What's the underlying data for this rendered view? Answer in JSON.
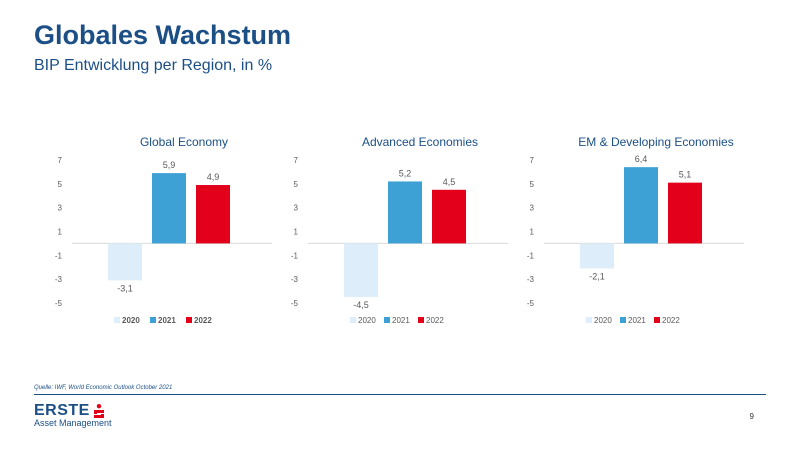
{
  "header": {
    "title": "Globales Wachstum",
    "subtitle": "BIP Entwicklung per Region, in %"
  },
  "footer": {
    "source": "Quelle: IWF, World Economic Outlook October 2021",
    "brand": "ERSTE",
    "brand_sub": "Asset Management",
    "page": "9"
  },
  "colors": {
    "2020": "#ddeefa",
    "2021": "#3ea1d6",
    "2022": "#e2001a",
    "brand": "#1b4f86"
  },
  "chart_data": [
    {
      "type": "bar",
      "title": "Global Economy",
      "categories": [
        "2020",
        "2021",
        "2022"
      ],
      "values": [
        -3.1,
        5.9,
        4.9
      ],
      "value_labels": [
        "-3,1",
        "5,9",
        "4,9"
      ],
      "yticks": [
        "7",
        "5",
        "3",
        "1",
        "-1",
        "-3",
        "-5"
      ],
      "ylim": [
        -5,
        7
      ],
      "legend_bold": true,
      "legend_position": "bottom"
    },
    {
      "type": "bar",
      "title": "Advanced Economies",
      "categories": [
        "2020",
        "2021",
        "2022"
      ],
      "values": [
        -4.5,
        5.2,
        4.5
      ],
      "value_labels": [
        "-4,5",
        "5,2",
        "4,5"
      ],
      "yticks": [
        "7",
        "5",
        "3",
        "1",
        "-1",
        "-3",
        "-5"
      ],
      "ylim": [
        -5,
        7
      ],
      "legend_bold": false,
      "legend_position": "bottom"
    },
    {
      "type": "bar",
      "title": "EM & Developing Economies",
      "categories": [
        "2020",
        "2021",
        "2022"
      ],
      "values": [
        -2.1,
        6.4,
        5.1
      ],
      "value_labels": [
        "-2,1",
        "6,4",
        "5,1"
      ],
      "yticks": [
        "7",
        "5",
        "3",
        "1",
        "-1",
        "-3",
        "-5"
      ],
      "ylim": [
        -5,
        7
      ],
      "legend_bold": false,
      "legend_position": "bottom"
    }
  ]
}
